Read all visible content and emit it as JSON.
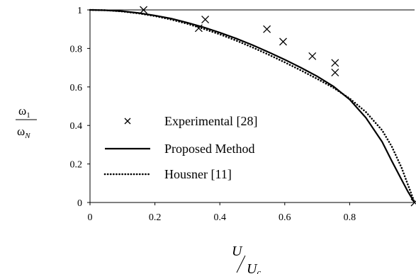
{
  "chart_data": {
    "type": "scatter+line",
    "xlim": [
      0,
      1
    ],
    "ylim": [
      0,
      1
    ],
    "x_ticks": [
      "0",
      "0.2",
      "0.4",
      "0.6",
      "0.8"
    ],
    "y_ticks": [
      "0",
      "0.2",
      "0.4",
      "0.6",
      "0.8",
      "1"
    ],
    "xlabel_num": "U",
    "xlabel_den": "U",
    "xlabel_den_sub": "c",
    "ylabel_num": "ω",
    "ylabel_num_sub": "1",
    "ylabel_den": "ω",
    "ylabel_den_sub": "N",
    "legend_position": "left-center",
    "grid": false,
    "series": [
      {
        "name": "Experimental [28]",
        "style": "markers-x",
        "points": [
          [
            0.165,
            1.0
          ],
          [
            0.335,
            0.905
          ],
          [
            0.355,
            0.95
          ],
          [
            0.545,
            0.9
          ],
          [
            0.595,
            0.835
          ],
          [
            0.685,
            0.76
          ],
          [
            0.755,
            0.725
          ],
          [
            0.755,
            0.675
          ],
          [
            1.0,
            0.0
          ]
        ]
      },
      {
        "name": "Proposed Method",
        "style": "solid",
        "points": [
          [
            0.0,
            1.0
          ],
          [
            0.05,
            0.998
          ],
          [
            0.1,
            0.993
          ],
          [
            0.15,
            0.984
          ],
          [
            0.2,
            0.971
          ],
          [
            0.25,
            0.955
          ],
          [
            0.3,
            0.934
          ],
          [
            0.35,
            0.91
          ],
          [
            0.4,
            0.882
          ],
          [
            0.45,
            0.852
          ],
          [
            0.5,
            0.818
          ],
          [
            0.55,
            0.781
          ],
          [
            0.6,
            0.742
          ],
          [
            0.65,
            0.7
          ],
          [
            0.7,
            0.655
          ],
          [
            0.75,
            0.603
          ],
          [
            0.8,
            0.535
          ],
          [
            0.85,
            0.44
          ],
          [
            0.9,
            0.315
          ],
          [
            0.93,
            0.215
          ],
          [
            0.96,
            0.118
          ],
          [
            0.98,
            0.055
          ],
          [
            1.0,
            0.0
          ]
        ]
      },
      {
        "name": "Housner [11]",
        "style": "dotted",
        "points": [
          [
            0.0,
            1.0
          ],
          [
            0.05,
            0.998
          ],
          [
            0.1,
            0.992
          ],
          [
            0.15,
            0.982
          ],
          [
            0.2,
            0.968
          ],
          [
            0.25,
            0.95
          ],
          [
            0.3,
            0.928
          ],
          [
            0.35,
            0.902
          ],
          [
            0.4,
            0.873
          ],
          [
            0.45,
            0.841
          ],
          [
            0.5,
            0.806
          ],
          [
            0.55,
            0.768
          ],
          [
            0.6,
            0.728
          ],
          [
            0.65,
            0.686
          ],
          [
            0.7,
            0.642
          ],
          [
            0.75,
            0.596
          ],
          [
            0.8,
            0.54
          ],
          [
            0.85,
            0.47
          ],
          [
            0.9,
            0.375
          ],
          [
            0.93,
            0.29
          ],
          [
            0.96,
            0.18
          ],
          [
            0.98,
            0.09
          ],
          [
            1.0,
            0.0
          ]
        ]
      }
    ]
  }
}
